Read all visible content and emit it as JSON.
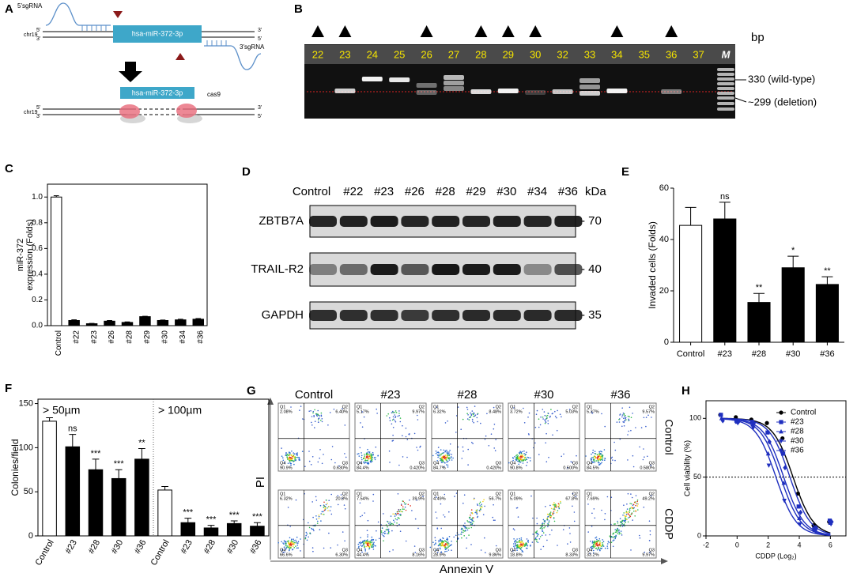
{
  "panel_a": {
    "panel": "A",
    "sgrna_5": "5'sgRNA",
    "sgrna_3": "3'sgRNA",
    "chromosome": "chr19",
    "end_5": "5'",
    "end_3": "3'",
    "gene": "hsa-miR-372-3p",
    "enzyme": "cas9"
  },
  "panel_b": {
    "panel": "B",
    "unit": "bp",
    "lanes": [
      "22",
      "23",
      "24",
      "25",
      "26",
      "27",
      "28",
      "29",
      "30",
      "32",
      "33",
      "34",
      "35",
      "36",
      "37",
      "M"
    ],
    "arrowheads": [
      true,
      true,
      false,
      false,
      true,
      false,
      true,
      true,
      true,
      false,
      false,
      true,
      false,
      true,
      false,
      false
    ],
    "band_labels": [
      "330 (wild-type)",
      "~299 (deletion)"
    ]
  },
  "panel_d": {
    "panel": "D",
    "lanes": [
      "Control",
      "#22",
      "#23",
      "#26",
      "#28",
      "#29",
      "#30",
      "#34",
      "#36"
    ],
    "unit": "kDa",
    "rows": [
      {
        "protein": "ZBTB7A",
        "size": "- 70"
      },
      {
        "protein": "TRAIL-R2",
        "size": "- 40"
      },
      {
        "protein": "GAPDH",
        "size": "- 35"
      }
    ]
  },
  "panel_g": {
    "panel": "G",
    "columns": [
      "Control",
      "#23",
      "#28",
      "#30",
      "#36"
    ],
    "quadrant_names": [
      "Q1",
      "Q2",
      "Q3",
      "Q4"
    ],
    "y_axis": "PI",
    "x_axis": "Annexin V",
    "rows": [
      {
        "label": "Control",
        "plots": [
          [
            "2.08%",
            "6.40%",
            "0.630%",
            "90.9%"
          ],
          [
            "5.17%",
            "9.97%",
            "0.420%",
            "84.4%"
          ],
          [
            "6.32%",
            "8.48%",
            "0.420%",
            "84.7%"
          ],
          [
            "3.72%",
            "5.03%",
            "0.500%",
            "90.8%"
          ],
          [
            "5.37%",
            "9.57%",
            "0.580%",
            "84.5%"
          ]
        ]
      },
      {
        "label": "CDDP",
        "plots": [
          [
            "6.32%",
            "20.8%",
            "6.30%",
            "66.6%"
          ],
          [
            "7.54%",
            "39.9%",
            "8.16%",
            "44.4%"
          ],
          [
            "4.49%",
            "56.7%",
            "9.86%",
            "28.9%"
          ],
          [
            "5.09%",
            "67.8%",
            "8.33%",
            "18.8%"
          ],
          [
            "7.69%",
            "49.2%",
            "9.97%",
            "33.2%"
          ]
        ]
      }
    ]
  },
  "chart_data": [
    {
      "panel": "C",
      "type": "bar",
      "categories": [
        "Control",
        "#22",
        "#23",
        "#26",
        "#28",
        "#29",
        "#30",
        "#34",
        "#36"
      ],
      "values": [
        1.0,
        0.04,
        0.015,
        0.035,
        0.025,
        0.07,
        0.04,
        0.045,
        0.05
      ],
      "errors": [
        0.01,
        0.005,
        0.003,
        0.005,
        0.004,
        0.003,
        0.004,
        0.005,
        0.005
      ],
      "bar_colors": [
        "#ffffff",
        "#000000",
        "#000000",
        "#000000",
        "#000000",
        "#000000",
        "#000000",
        "#000000",
        "#000000"
      ],
      "ylim": [
        0,
        1.1
      ],
      "yticks": [
        {
          "value": 0,
          "label": "0.0"
        },
        0.2,
        0.4,
        0.6,
        0.8,
        {
          "value": 1,
          "label": "1.0"
        }
      ],
      "ylabel": [
        "miR-372",
        "expression (Folds)"
      ]
    },
    {
      "panel": "E",
      "type": "bar",
      "categories": [
        "Control",
        "#23",
        "#28",
        "#30",
        "#36"
      ],
      "values": [
        45.5,
        48,
        15.5,
        29,
        22.5
      ],
      "errors": [
        7,
        6.5,
        3.5,
        4.5,
        3
      ],
      "bar_colors": [
        "#ffffff",
        "#000000",
        "#000000",
        "#000000",
        "#000000"
      ],
      "significance": [
        null,
        "ns",
        "**",
        "*",
        "**"
      ],
      "ylim": [
        0,
        60
      ],
      "yticks": [
        0,
        20,
        40,
        60
      ],
      "ylabel": [
        "Invaded cells (Folds)"
      ]
    },
    {
      "panel": "F",
      "type": "bar",
      "categories": [
        "Control",
        "#23",
        "#28",
        "#30",
        "#36",
        "Control",
        "#23",
        "#28",
        "#30",
        "#36"
      ],
      "values": [
        130,
        101,
        75,
        65,
        87,
        52,
        15,
        9,
        14,
        11
      ],
      "errors": [
        4,
        14,
        12,
        10,
        12,
        4,
        5,
        3,
        3,
        4
      ],
      "bar_colors": [
        "#ffffff",
        "#000000",
        "#000000",
        "#000000",
        "#000000",
        "#ffffff",
        "#000000",
        "#000000",
        "#000000",
        "#000000"
      ],
      "significance": [
        null,
        "ns",
        "***",
        "***",
        "**",
        null,
        "***",
        "***",
        "***",
        "***"
      ],
      "group_labels": [
        "> 50µm",
        "> 100µm"
      ],
      "ylim": [
        0,
        155
      ],
      "yticks": [
        0,
        50,
        100,
        150
      ],
      "ylabel": [
        "Colonies/field"
      ]
    },
    {
      "panel": "H",
      "type": "scatter",
      "x": [
        -1,
        0,
        1,
        2,
        3,
        4,
        5,
        6
      ],
      "series": [
        {
          "name": "Control",
          "color": "#000000",
          "marker": "circle",
          "values": [
            103,
            101,
            99,
            96,
            83,
            36,
            9,
            12
          ],
          "log_ic50": 3.6
        },
        {
          "name": "#23",
          "color": "#1f2fbf",
          "marker": "square",
          "values": [
            103,
            98,
            97,
            88,
            70,
            25,
            6,
            13
          ],
          "log_ic50": 3.4
        },
        {
          "name": "#28",
          "color": "#1f2fbf",
          "marker": "triangle-up",
          "values": [
            100,
            97,
            95,
            70,
            45,
            15,
            5,
            11
          ],
          "log_ic50": 2.8
        },
        {
          "name": "#30",
          "color": "#1f2fbf",
          "marker": "triangle-down",
          "values": [
            99,
            96,
            92,
            60,
            30,
            10,
            4,
            10
          ],
          "log_ic50": 2.5
        },
        {
          "name": "#36",
          "color": "#1f2fbf",
          "marker": "diamond",
          "values": [
            98,
            97,
            96,
            80,
            58,
            20,
            7,
            12
          ],
          "log_ic50": 3.0
        }
      ],
      "fit_slope": 2.2,
      "hline": 50,
      "xlim": [
        -2,
        7
      ],
      "ylim": [
        0,
        115
      ],
      "xticks": [
        -2,
        0,
        2,
        4,
        6
      ],
      "yticks": [
        0,
        50,
        100
      ],
      "xlabel": "CDDP (Log₂)",
      "ylabel": "Cell viability (%)",
      "legend": "upper right"
    }
  ]
}
